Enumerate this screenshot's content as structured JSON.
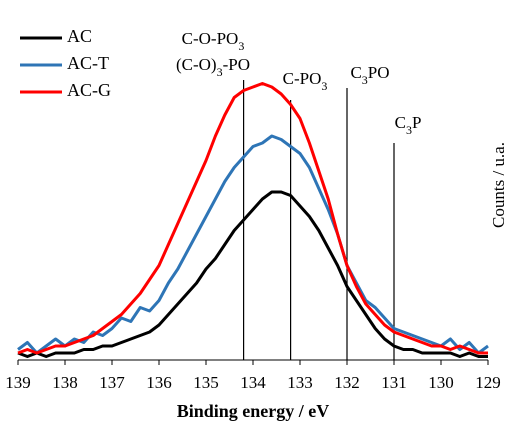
{
  "chart_data": {
    "type": "line",
    "xlabel": "Binding energy / eV",
    "ylabel": "Counts / u.a.",
    "xlim": [
      139,
      129
    ],
    "ylim": [
      0,
      100
    ],
    "xticks": [
      139,
      138,
      137,
      136,
      135,
      134,
      133,
      132,
      131,
      130,
      129
    ],
    "x": [
      139,
      138.8,
      138.6,
      138.4,
      138.2,
      138,
      137.8,
      137.6,
      137.4,
      137.2,
      137,
      136.8,
      136.6,
      136.4,
      136.2,
      136,
      135.8,
      135.6,
      135.4,
      135.2,
      135,
      134.8,
      134.6,
      134.4,
      134.2,
      134,
      133.8,
      133.6,
      133.4,
      133.2,
      133,
      132.8,
      132.6,
      132.4,
      132.2,
      132,
      131.8,
      131.6,
      131.4,
      131.2,
      131,
      130.8,
      130.6,
      130.4,
      130.2,
      130,
      129.8,
      129.6,
      129.4,
      129.2,
      129
    ],
    "series": [
      {
        "name": "AC",
        "color": "#000000",
        "values": [
          2,
          1,
          2,
          1,
          2,
          2,
          2,
          3,
          3,
          4,
          4,
          5,
          6,
          7,
          8,
          10,
          13,
          16,
          19,
          22,
          26,
          29,
          33,
          37,
          40,
          43,
          46,
          48,
          48,
          47,
          44,
          41,
          37,
          32,
          27,
          21,
          17,
          13,
          9,
          6,
          4,
          3,
          3,
          2,
          2,
          2,
          2,
          1,
          2,
          1,
          1
        ]
      },
      {
        "name": "AC-T",
        "color": "#2e75b6",
        "values": [
          3,
          5,
          2,
          4,
          6,
          4,
          6,
          5,
          8,
          7,
          9,
          12,
          11,
          15,
          14,
          17,
          22,
          26,
          31,
          36,
          41,
          46,
          51,
          55,
          58,
          61,
          62,
          64,
          63,
          61,
          59,
          55,
          49,
          43,
          36,
          27,
          22,
          17,
          15,
          12,
          9,
          8,
          7,
          6,
          5,
          4,
          6,
          3,
          5,
          2,
          4
        ]
      },
      {
        "name": "AC-G",
        "color": "#ff0000",
        "values": [
          2,
          3,
          2,
          3,
          4,
          4,
          5,
          6,
          7,
          9,
          11,
          13,
          16,
          19,
          23,
          27,
          33,
          39,
          45,
          51,
          57,
          64,
          70,
          75,
          77,
          78,
          79,
          78,
          76,
          73,
          69,
          62,
          54,
          46,
          36,
          27,
          21,
          16,
          13,
          10,
          8,
          7,
          6,
          5,
          4,
          4,
          3,
          4,
          3,
          2,
          2
        ]
      }
    ],
    "reference_lines": [
      {
        "x": 134.2,
        "labels": [
          [
            "C-O-PO",
            "3"
          ],
          [
            "(C-O)",
            "3",
            "-PO"
          ]
        ]
      },
      {
        "x": 133.2,
        "labels": [
          [
            "C-PO",
            "3"
          ]
        ]
      },
      {
        "x": 132,
        "labels": [
          [
            "C",
            "3",
            "PO"
          ]
        ]
      },
      {
        "x": 131,
        "labels": [
          [
            "C",
            "3",
            "P"
          ]
        ]
      }
    ]
  }
}
